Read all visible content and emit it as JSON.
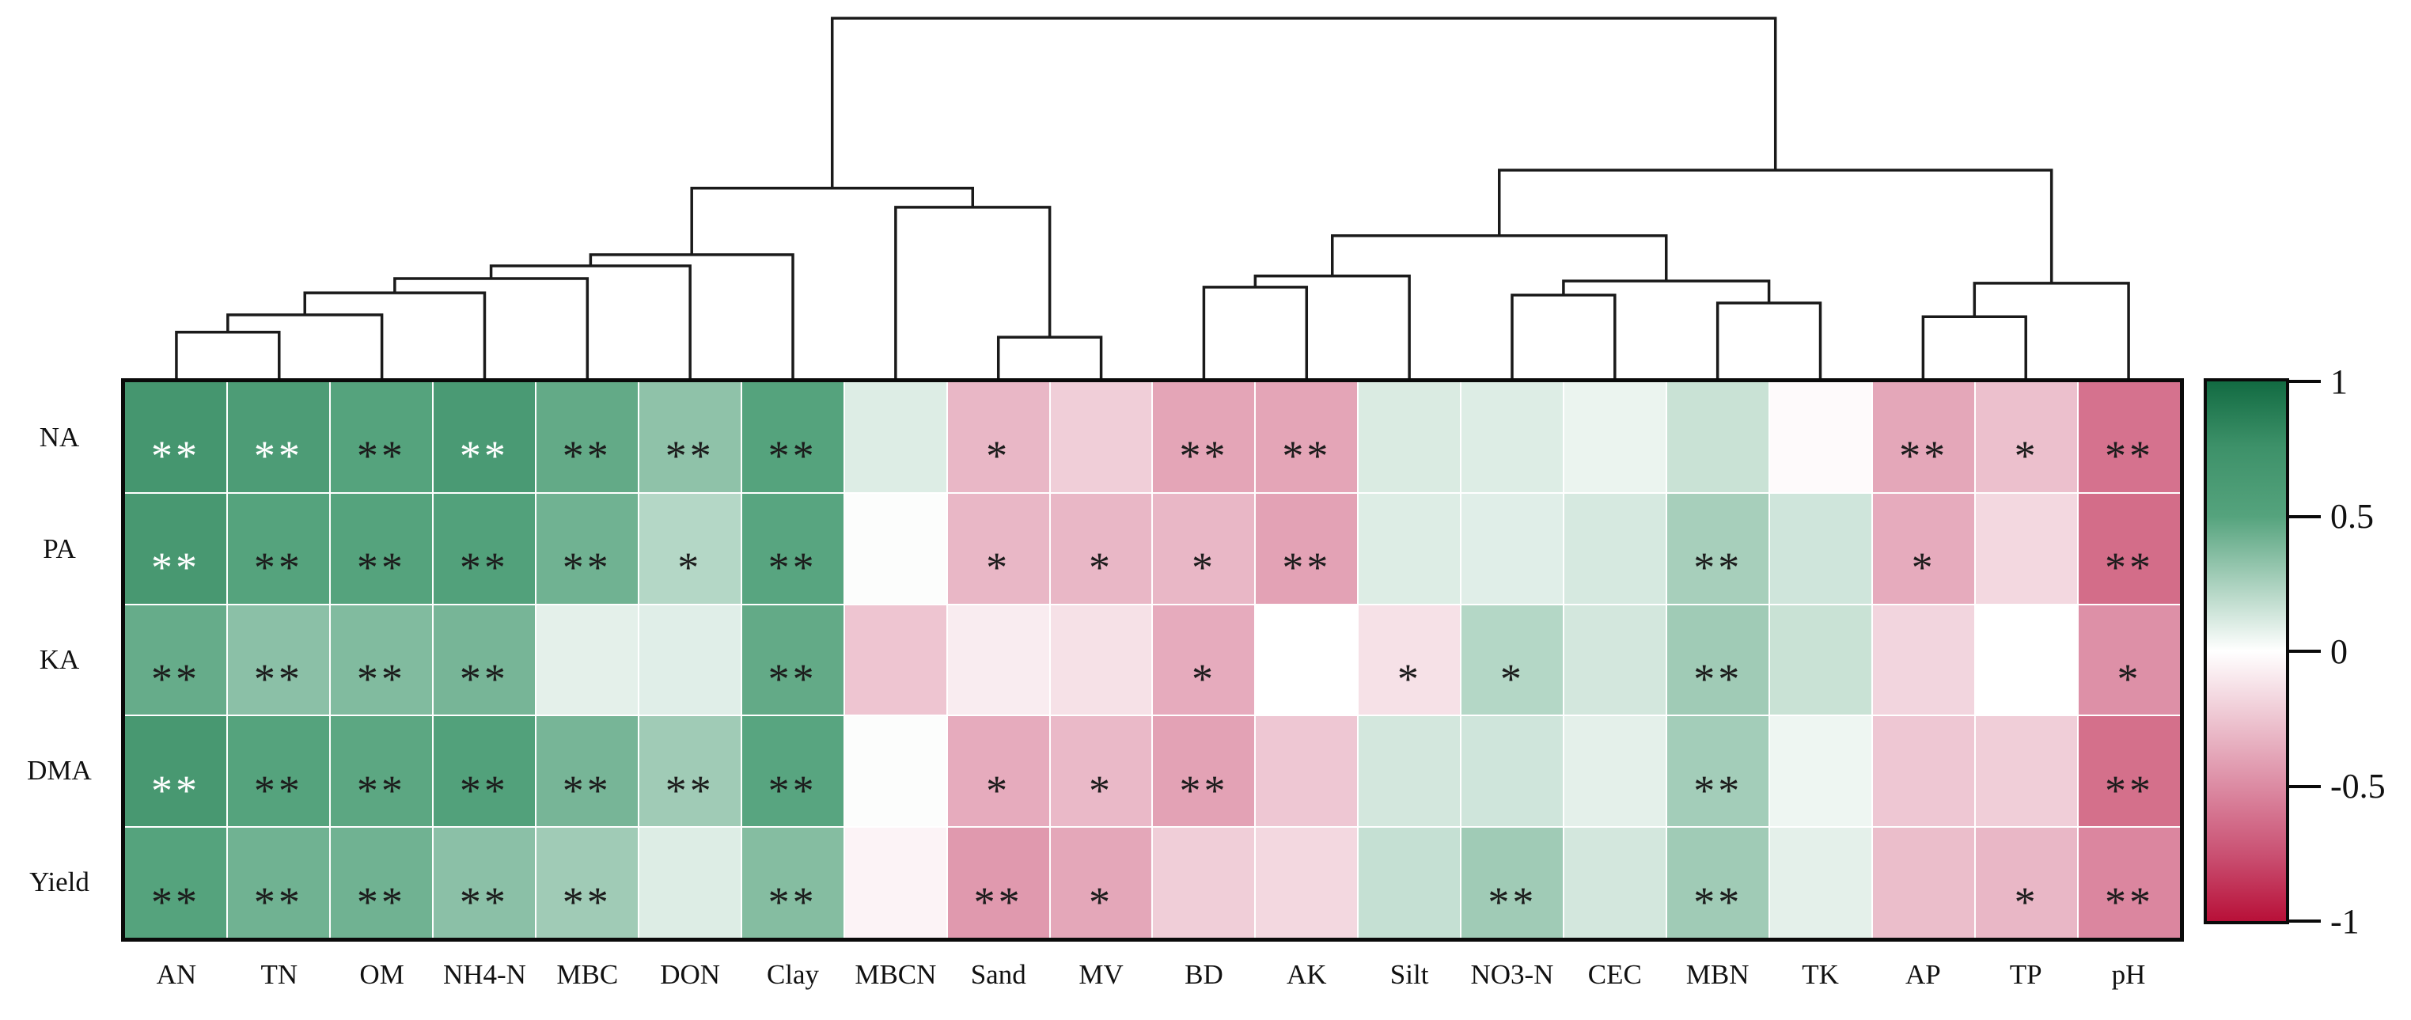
{
  "chart_data": {
    "type": "heatmap",
    "title": "",
    "description": "Clustered correlation heatmap of soil enzyme activities / yield versus soil properties, with column dendrogram and diverging green-white-red colorbar",
    "rows": [
      "NA",
      "PA",
      "KA",
      "DMA",
      "Yield"
    ],
    "columns": [
      "AN",
      "TN",
      "OM",
      "NH4-N",
      "MBC",
      "DON",
      "Clay",
      "MBCN",
      "Sand",
      "MV",
      "BD",
      "AK",
      "Silt",
      "NO3-N",
      "CEC",
      "MBN",
      "TK",
      "AP",
      "TP",
      "pH"
    ],
    "values": [
      [
        0.62,
        0.56,
        0.5,
        0.58,
        0.46,
        0.33,
        0.5,
        0.1,
        -0.31,
        -0.21,
        -0.39,
        -0.39,
        0.11,
        0.1,
        0.06,
        0.16,
        -0.02,
        -0.38,
        -0.27,
        -0.6
      ],
      [
        0.6,
        0.5,
        0.5,
        0.52,
        0.42,
        0.22,
        0.49,
        0.01,
        -0.31,
        -0.31,
        -0.31,
        -0.4,
        0.1,
        0.09,
        0.12,
        0.26,
        0.14,
        -0.36,
        -0.17,
        -0.62
      ],
      [
        0.45,
        0.34,
        0.37,
        0.4,
        0.08,
        0.09,
        0.46,
        -0.25,
        -0.08,
        -0.13,
        -0.36,
        0.0,
        -0.13,
        0.22,
        0.13,
        0.28,
        0.16,
        -0.18,
        0.0,
        -0.48
      ],
      [
        0.6,
        0.5,
        0.48,
        0.52,
        0.4,
        0.28,
        0.49,
        0.01,
        -0.36,
        -0.3,
        -0.4,
        -0.24,
        0.13,
        0.14,
        0.08,
        0.27,
        0.05,
        -0.24,
        -0.21,
        -0.61
      ],
      [
        0.5,
        0.42,
        0.42,
        0.34,
        0.28,
        0.1,
        0.36,
        -0.05,
        -0.44,
        -0.38,
        -0.21,
        -0.17,
        0.17,
        0.28,
        0.13,
        0.28,
        0.08,
        -0.28,
        -0.31,
        -0.52
      ]
    ],
    "significance": [
      [
        "**",
        "**",
        "**",
        "**",
        "**",
        "**",
        "**",
        "",
        "*",
        "",
        "**",
        "**",
        "",
        "",
        "",
        "",
        "",
        "**",
        "*",
        "**"
      ],
      [
        "**",
        "**",
        "**",
        "**",
        "**",
        "*",
        "**",
        "",
        "*",
        "*",
        "*",
        "**",
        "",
        "",
        "",
        "**",
        "",
        "*",
        "",
        "**"
      ],
      [
        "**",
        "**",
        "**",
        "**",
        "",
        "",
        "**",
        "",
        "",
        "",
        "*",
        "",
        "*",
        "*",
        "",
        "**",
        "",
        "",
        "",
        "*"
      ],
      [
        "**",
        "**",
        "**",
        "**",
        "**",
        "**",
        "**",
        "",
        "*",
        "*",
        "**",
        "",
        "",
        "",
        "",
        "**",
        "",
        "",
        "",
        "**"
      ],
      [
        "**",
        "**",
        "**",
        "**",
        "**",
        "",
        "**",
        "",
        "**",
        "*",
        "",
        "",
        "",
        "**",
        "",
        "**",
        "",
        "",
        "*",
        "**"
      ]
    ],
    "white_star_threshold": 0.55,
    "colormap": {
      "zero": "#ffffff",
      "positive_mid": "#55a37d",
      "positive_end": "#126b42",
      "negative_mid": "#dc8ba3",
      "negative_end": "#b81038"
    },
    "colorbar": {
      "min": -1,
      "max": 1,
      "tick_labels": [
        "1",
        "0.5",
        "0",
        "-0.5",
        "-1"
      ],
      "tick_values": [
        1,
        0.5,
        0,
        -0.5,
        -1
      ],
      "position": "right"
    },
    "dendrogram": {
      "orientation": "top",
      "merges": [
        {
          "id": "m1",
          "a": "AN",
          "b": "TN",
          "h": 0.128
        },
        {
          "id": "m2",
          "a": "m1",
          "b": "OM",
          "h": 0.176
        },
        {
          "id": "m3",
          "a": "m2",
          "b": "NH4-N",
          "h": 0.237
        },
        {
          "id": "m4",
          "a": "m3",
          "b": "MBC",
          "h": 0.277
        },
        {
          "id": "m5",
          "a": "m4",
          "b": "DON",
          "h": 0.312
        },
        {
          "id": "m6",
          "a": "m5",
          "b": "Clay",
          "h": 0.343
        },
        {
          "id": "m7",
          "a": "Sand",
          "b": "MV",
          "h": 0.114
        },
        {
          "id": "m8",
          "a": "MBCN",
          "b": "m7",
          "h": 0.475
        },
        {
          "id": "m9",
          "a": "m6",
          "b": "m8",
          "h": 0.528
        },
        {
          "id": "m10",
          "a": "BD",
          "b": "AK",
          "h": 0.253
        },
        {
          "id": "m11",
          "a": "m10",
          "b": "Silt",
          "h": 0.284
        },
        {
          "id": "m12",
          "a": "NO3-N",
          "b": "CEC",
          "h": 0.231
        },
        {
          "id": "m13",
          "a": "MBN",
          "b": "TK",
          "h": 0.209
        },
        {
          "id": "m14",
          "a": "m12",
          "b": "m13",
          "h": 0.27
        },
        {
          "id": "m15",
          "a": "m11",
          "b": "m14",
          "h": 0.396
        },
        {
          "id": "m16",
          "a": "AP",
          "b": "TP",
          "h": 0.171
        },
        {
          "id": "m17",
          "a": "m16",
          "b": "pH",
          "h": 0.264
        },
        {
          "id": "m18",
          "a": "m15",
          "b": "m17",
          "h": 0.578
        },
        {
          "id": "m19",
          "a": "m9",
          "b": "m18",
          "h": 1.0
        }
      ]
    }
  }
}
